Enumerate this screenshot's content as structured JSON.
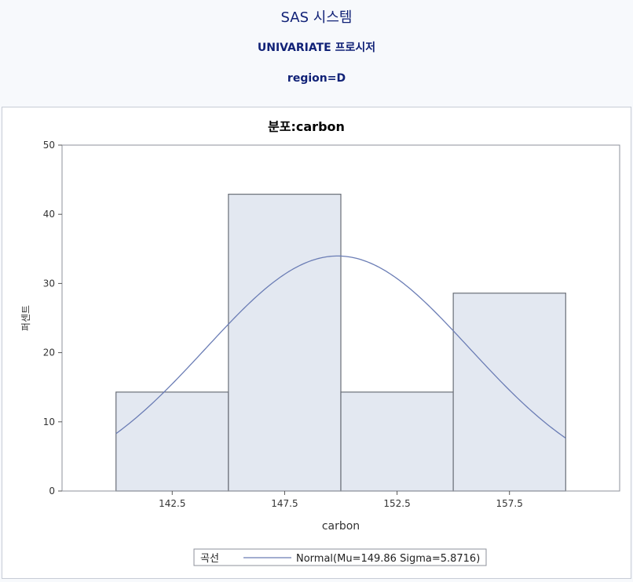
{
  "page": {
    "title": "SAS 시스템",
    "subtitle": "UNIVARIATE 프로시저",
    "by_group": "region=D"
  },
  "chart_data": {
    "type": "bar",
    "title": "분포:carbon",
    "xlabel": "carbon",
    "ylabel": "퍼센트",
    "bins": [
      {
        "low": 140,
        "high": 145,
        "value": 14.3
      },
      {
        "low": 145,
        "high": 150,
        "value": 42.9
      },
      {
        "low": 150,
        "high": 155,
        "value": 14.3
      },
      {
        "low": 155,
        "high": 160,
        "value": 28.6
      }
    ],
    "xlim": [
      137.6,
      162.4
    ],
    "ylim": [
      0,
      50
    ],
    "xticks": [
      142.5,
      147.5,
      152.5,
      157.5
    ],
    "xtick_labels": [
      "142.5",
      "147.5",
      "152.5",
      "157.5"
    ],
    "yticks": [
      0,
      10,
      20,
      30,
      40,
      50
    ],
    "curve": {
      "type": "normal",
      "mu": 149.86,
      "sigma": 5.8716,
      "bin_width": 5,
      "x_range": [
        140,
        160
      ]
    },
    "legend": {
      "position": "bottom-center",
      "title": "곡선",
      "entries": [
        {
          "label": "Normal(Mu=149.86 Sigma=5.8716)",
          "color": "#6b7db5"
        }
      ]
    },
    "colors": {
      "bar_fill": "#e3e8f1",
      "bar_stroke": "#6a6f78",
      "curve": "#6b7db5"
    }
  }
}
